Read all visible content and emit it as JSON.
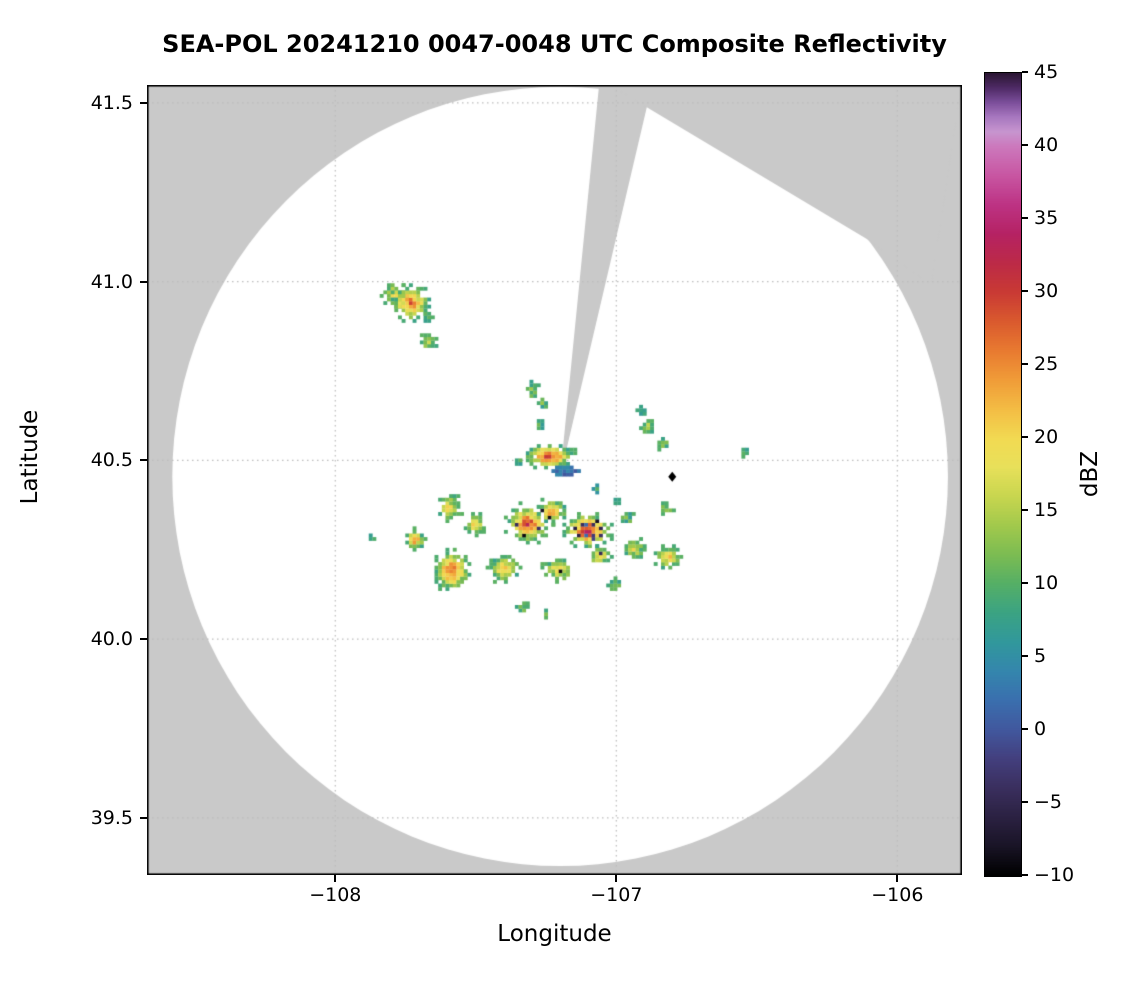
{
  "chart_data": {
    "type": "heatmap",
    "title": "SEA-POL 20241210 0047-0048 UTC Composite Reflectivity",
    "xlabel": "Longitude",
    "ylabel": "Latitude",
    "xlim": [
      -108.67,
      -105.77
    ],
    "ylim": [
      39.34,
      41.55
    ],
    "grid": true,
    "grid_color": "#bdbdbd",
    "nodata_color": "#c9c9c9",
    "frame_color": "#000000",
    "xticks": [
      {
        "value": -108,
        "label": "−108"
      },
      {
        "value": -107,
        "label": "−107"
      },
      {
        "value": -106,
        "label": "−106"
      }
    ],
    "yticks": [
      {
        "value": 39.5,
        "label": "39.5"
      },
      {
        "value": 40.0,
        "label": "40.0"
      },
      {
        "value": 40.5,
        "label": "40.5"
      },
      {
        "value": 41.0,
        "label": "41.0"
      },
      {
        "value": 41.5,
        "label": "41.5"
      }
    ],
    "coverage_circle": {
      "center_lon": -107.2,
      "center_lat": 40.455,
      "radius_lon_deg": 1.38,
      "radius_lat_deg": 1.09,
      "fill": "#ffffff"
    },
    "blocked_sectors": [
      {
        "name": "narrow-north-wedge",
        "polygon": [
          [
            -107.2,
            40.455
          ],
          [
            -107.06,
            41.56
          ],
          [
            -106.87,
            41.56
          ]
        ]
      },
      {
        "name": "northeast-wedge",
        "polygon": [
          [
            -107.045,
            41.56
          ],
          [
            -106.11,
            41.12
          ],
          [
            -105.88,
            40.99
          ],
          [
            -105.77,
            41.56
          ]
        ]
      }
    ],
    "site_marker": {
      "lon": -106.801,
      "lat": 40.454,
      "shape": "diamond",
      "color": "#000000"
    },
    "colorbar": {
      "label": "dBZ",
      "min": -10,
      "max": 45,
      "ticks": [
        {
          "value": -10,
          "label": "−10"
        },
        {
          "value": -5,
          "label": "−5"
        },
        {
          "value": 0,
          "label": "0"
        },
        {
          "value": 5,
          "label": "5"
        },
        {
          "value": 10,
          "label": "10"
        },
        {
          "value": 15,
          "label": "15"
        },
        {
          "value": 20,
          "label": "20"
        },
        {
          "value": 25,
          "label": "25"
        },
        {
          "value": 30,
          "label": "30"
        },
        {
          "value": 35,
          "label": "35"
        },
        {
          "value": 40,
          "label": "40"
        },
        {
          "value": 45,
          "label": "45"
        }
      ]
    },
    "colormap_stops": [
      [
        -10,
        "#000000"
      ],
      [
        -8,
        "#191426"
      ],
      [
        -6,
        "#2b2142"
      ],
      [
        -4,
        "#3a2f5e"
      ],
      [
        -2,
        "#433f7e"
      ],
      [
        0,
        "#41589e"
      ],
      [
        2,
        "#3a6fae"
      ],
      [
        4,
        "#3486ad"
      ],
      [
        6,
        "#31989c"
      ],
      [
        8,
        "#3ba383"
      ],
      [
        10,
        "#55af66"
      ],
      [
        12,
        "#7cbc52"
      ],
      [
        14,
        "#a2c94c"
      ],
      [
        16,
        "#c8d64f"
      ],
      [
        18,
        "#e8e05a"
      ],
      [
        20,
        "#f2da52"
      ],
      [
        22,
        "#f3bc44"
      ],
      [
        24,
        "#f09c38"
      ],
      [
        26,
        "#e87a30"
      ],
      [
        28,
        "#da5a2e"
      ],
      [
        30,
        "#c93a34"
      ],
      [
        32,
        "#bc2a47"
      ],
      [
        34,
        "#b52264"
      ],
      [
        36,
        "#bd3384"
      ],
      [
        38,
        "#c856a2"
      ],
      [
        40,
        "#cc79bd"
      ],
      [
        41,
        "#c795cf"
      ],
      [
        42,
        "#a878c0"
      ],
      [
        43,
        "#7c4f9b"
      ],
      [
        44,
        "#4f2b66"
      ],
      [
        45,
        "#2b1633"
      ]
    ],
    "echoes": [
      {
        "lon": -107.787,
        "lat": 40.963,
        "rx": 0.04,
        "ry": 0.03,
        "peak": 22,
        "speckle": false
      },
      {
        "lon": -107.73,
        "lat": 40.94,
        "rx": 0.06,
        "ry": 0.048,
        "peak": 27,
        "speckle": false
      },
      {
        "lon": -107.67,
        "lat": 40.898,
        "rx": 0.018,
        "ry": 0.015,
        "peak": 12,
        "speckle": false
      },
      {
        "lon": -107.67,
        "lat": 40.828,
        "rx": 0.028,
        "ry": 0.02,
        "peak": 14,
        "speckle": false
      },
      {
        "lon": -107.296,
        "lat": 40.697,
        "rx": 0.02,
        "ry": 0.024,
        "peak": 13,
        "speckle": false
      },
      {
        "lon": -107.262,
        "lat": 40.658,
        "rx": 0.015,
        "ry": 0.015,
        "peak": 11,
        "speckle": false
      },
      {
        "lon": -107.271,
        "lat": 40.599,
        "rx": 0.013,
        "ry": 0.012,
        "peak": 10,
        "speckle": false
      },
      {
        "lon": -107.239,
        "lat": 40.512,
        "rx": 0.08,
        "ry": 0.032,
        "peak": 30,
        "speckle": false
      },
      {
        "lon": -107.185,
        "lat": 40.468,
        "rx": 0.055,
        "ry": 0.013,
        "peak": 5,
        "speckle": false
      },
      {
        "lon": -107.345,
        "lat": 40.497,
        "rx": 0.016,
        "ry": 0.012,
        "peak": 10,
        "speckle": false
      },
      {
        "lon": -106.887,
        "lat": 40.591,
        "rx": 0.024,
        "ry": 0.019,
        "peak": 16,
        "speckle": false
      },
      {
        "lon": -106.912,
        "lat": 40.636,
        "rx": 0.013,
        "ry": 0.012,
        "peak": 10,
        "speckle": false
      },
      {
        "lon": -106.833,
        "lat": 40.547,
        "rx": 0.019,
        "ry": 0.016,
        "peak": 12,
        "speckle": false
      },
      {
        "lon": -106.545,
        "lat": 40.525,
        "rx": 0.013,
        "ry": 0.012,
        "peak": 14,
        "speckle": false
      },
      {
        "lon": -107.592,
        "lat": 40.367,
        "rx": 0.038,
        "ry": 0.032,
        "peak": 20,
        "speckle": false
      },
      {
        "lon": -107.503,
        "lat": 40.322,
        "rx": 0.032,
        "ry": 0.026,
        "peak": 22,
        "speckle": false
      },
      {
        "lon": -107.314,
        "lat": 40.322,
        "rx": 0.068,
        "ry": 0.048,
        "peak": 30,
        "speckle": true
      },
      {
        "lon": -107.101,
        "lat": 40.303,
        "rx": 0.078,
        "ry": 0.045,
        "peak": 32,
        "speckle": true
      },
      {
        "lon": -107.229,
        "lat": 40.357,
        "rx": 0.048,
        "ry": 0.032,
        "peak": 24,
        "speckle": true
      },
      {
        "lon": -106.934,
        "lat": 40.252,
        "rx": 0.032,
        "ry": 0.026,
        "peak": 18,
        "speckle": false
      },
      {
        "lon": -106.816,
        "lat": 40.229,
        "rx": 0.042,
        "ry": 0.03,
        "peak": 21,
        "speckle": false
      },
      {
        "lon": -107.716,
        "lat": 40.277,
        "rx": 0.03,
        "ry": 0.025,
        "peak": 26,
        "speckle": false
      },
      {
        "lon": -107.585,
        "lat": 40.191,
        "rx": 0.058,
        "ry": 0.05,
        "peak": 29,
        "speckle": false
      },
      {
        "lon": -107.396,
        "lat": 40.196,
        "rx": 0.048,
        "ry": 0.034,
        "peak": 23,
        "speckle": false
      },
      {
        "lon": -107.207,
        "lat": 40.193,
        "rx": 0.052,
        "ry": 0.03,
        "peak": 19,
        "speckle": true
      },
      {
        "lon": -107.058,
        "lat": 40.232,
        "rx": 0.038,
        "ry": 0.027,
        "peak": 20,
        "speckle": true
      },
      {
        "lon": -107.332,
        "lat": 40.09,
        "rx": 0.02,
        "ry": 0.015,
        "peak": 13,
        "speckle": false
      },
      {
        "lon": -107.247,
        "lat": 40.076,
        "rx": 0.013,
        "ry": 0.012,
        "peak": 11,
        "speckle": false
      },
      {
        "lon": -107.072,
        "lat": 40.42,
        "rx": 0.015,
        "ry": 0.013,
        "peak": 10,
        "speckle": false
      },
      {
        "lon": -106.997,
        "lat": 40.389,
        "rx": 0.013,
        "ry": 0.011,
        "peak": 9,
        "speckle": false
      },
      {
        "lon": -106.962,
        "lat": 40.339,
        "rx": 0.022,
        "ry": 0.017,
        "peak": 12,
        "speckle": false
      },
      {
        "lon": -106.826,
        "lat": 40.367,
        "rx": 0.026,
        "ry": 0.02,
        "peak": 14,
        "speckle": false
      },
      {
        "lon": -107.004,
        "lat": 40.152,
        "rx": 0.022,
        "ry": 0.016,
        "peak": 12,
        "speckle": false
      },
      {
        "lon": -107.87,
        "lat": 40.283,
        "rx": 0.013,
        "ry": 0.012,
        "peak": 10,
        "speckle": false
      }
    ]
  }
}
